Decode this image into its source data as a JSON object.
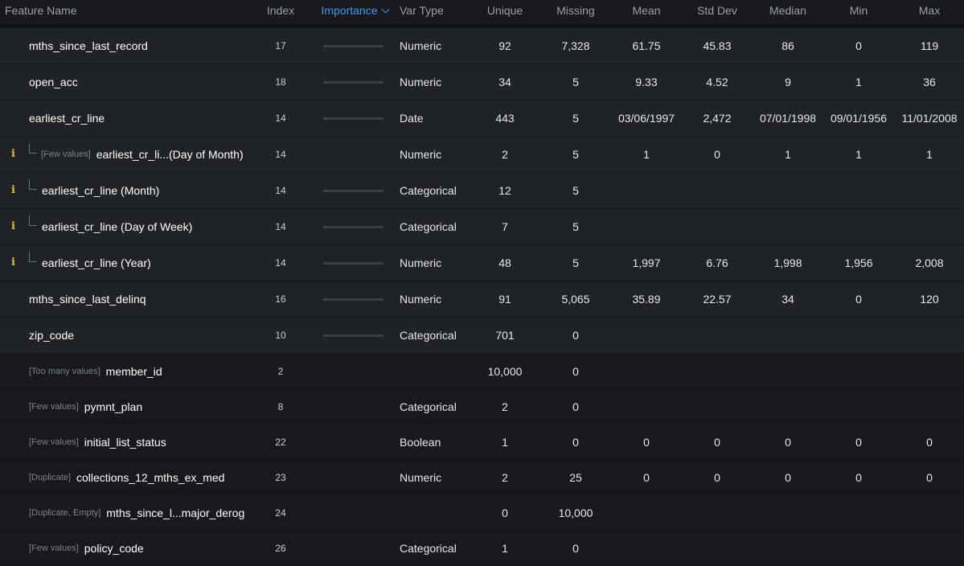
{
  "columns": {
    "feature_name": "Feature Name",
    "index": "Index",
    "importance": "Importance",
    "var_type": "Var Type",
    "unique": "Unique",
    "missing": "Missing",
    "mean": "Mean",
    "std_dev": "Std Dev",
    "median": "Median",
    "min": "Min",
    "max": "Max"
  },
  "sort": {
    "column": "Importance",
    "direction": "descending",
    "icon": "chevron-down-icon"
  },
  "colors": {
    "accent": "#3d9bf0",
    "info": "#e8c21c",
    "bar_track": "#3a3f45"
  },
  "rows": [
    {
      "name": "mths_since_last_record",
      "tag": "",
      "index": "17",
      "importance": 0,
      "var_type": "Numeric",
      "unique": "92",
      "missing": "7,328",
      "mean": "61.75",
      "std_dev": "45.83",
      "median": "86",
      "min": "0",
      "max": "119",
      "info": false,
      "child": false,
      "dim": false
    },
    {
      "name": "open_acc",
      "tag": "",
      "index": "18",
      "importance": 0,
      "var_type": "Numeric",
      "unique": "34",
      "missing": "5",
      "mean": "9.33",
      "std_dev": "4.52",
      "median": "9",
      "min": "1",
      "max": "36",
      "info": false,
      "child": false,
      "dim": false
    },
    {
      "name": "earliest_cr_line",
      "tag": "",
      "index": "14",
      "importance": 0,
      "var_type": "Date",
      "unique": "443",
      "missing": "5",
      "mean": "03/06/1997",
      "std_dev": "2,472",
      "median": "07/01/1998",
      "min": "09/01/1956",
      "max": "11/01/2008",
      "info": false,
      "child": false,
      "dim": false
    },
    {
      "name": "earliest_cr_li...(Day of Month)",
      "tag": "[Few values]",
      "index": "14",
      "importance": null,
      "var_type": "Numeric",
      "unique": "2",
      "missing": "5",
      "mean": "1",
      "std_dev": "0",
      "median": "1",
      "min": "1",
      "max": "1",
      "info": true,
      "child": true,
      "dim": false
    },
    {
      "name": "earliest_cr_line (Month)",
      "tag": "",
      "index": "14",
      "importance": 0,
      "var_type": "Categorical",
      "unique": "12",
      "missing": "5",
      "mean": "",
      "std_dev": "",
      "median": "",
      "min": "",
      "max": "",
      "info": true,
      "child": true,
      "dim": false
    },
    {
      "name": "earliest_cr_line (Day of Week)",
      "tag": "",
      "index": "14",
      "importance": 0,
      "var_type": "Categorical",
      "unique": "7",
      "missing": "5",
      "mean": "",
      "std_dev": "",
      "median": "",
      "min": "",
      "max": "",
      "info": true,
      "child": true,
      "dim": false
    },
    {
      "name": "earliest_cr_line (Year)",
      "tag": "",
      "index": "14",
      "importance": 0,
      "var_type": "Numeric",
      "unique": "48",
      "missing": "5",
      "mean": "1,997",
      "std_dev": "6.76",
      "median": "1,998",
      "min": "1,956",
      "max": "2,008",
      "info": true,
      "child": true,
      "dim": false
    },
    {
      "name": "mths_since_last_delinq",
      "tag": "",
      "index": "16",
      "importance": 0,
      "var_type": "Numeric",
      "unique": "91",
      "missing": "5,065",
      "mean": "35.89",
      "std_dev": "22.57",
      "median": "34",
      "min": "0",
      "max": "120",
      "info": false,
      "child": false,
      "dim": false
    },
    {
      "name": "zip_code",
      "tag": "",
      "index": "10",
      "importance": 0,
      "var_type": "Categorical",
      "unique": "701",
      "missing": "0",
      "mean": "",
      "std_dev": "",
      "median": "",
      "min": "",
      "max": "",
      "info": false,
      "child": false,
      "dim": false
    },
    {
      "name": "member_id",
      "tag": "[Too many values]",
      "index": "2",
      "importance": null,
      "var_type": "",
      "unique": "10,000",
      "missing": "0",
      "mean": "",
      "std_dev": "",
      "median": "",
      "min": "",
      "max": "",
      "info": false,
      "child": false,
      "dim": true
    },
    {
      "name": "pymnt_plan",
      "tag": "[Few values]",
      "index": "8",
      "importance": null,
      "var_type": "Categorical",
      "unique": "2",
      "missing": "0",
      "mean": "",
      "std_dev": "",
      "median": "",
      "min": "",
      "max": "",
      "info": false,
      "child": false,
      "dim": true
    },
    {
      "name": "initial_list_status",
      "tag": "[Few values]",
      "index": "22",
      "importance": null,
      "var_type": "Boolean",
      "unique": "1",
      "missing": "0",
      "mean": "0",
      "std_dev": "0",
      "median": "0",
      "min": "0",
      "max": "0",
      "info": false,
      "child": false,
      "dim": true
    },
    {
      "name": "collections_12_mths_ex_med",
      "tag": "[Duplicate]",
      "index": "23",
      "importance": null,
      "var_type": "Numeric",
      "unique": "2",
      "missing": "25",
      "mean": "0",
      "std_dev": "0",
      "median": "0",
      "min": "0",
      "max": "0",
      "info": false,
      "child": false,
      "dim": true
    },
    {
      "name": "mths_since_l...major_derog",
      "tag": "[Duplicate, Empty]",
      "index": "24",
      "importance": null,
      "var_type": "",
      "unique": "0",
      "missing": "10,000",
      "mean": "",
      "std_dev": "",
      "median": "",
      "min": "",
      "max": "",
      "info": false,
      "child": false,
      "dim": true
    },
    {
      "name": "policy_code",
      "tag": "[Few values]",
      "index": "26",
      "importance": null,
      "var_type": "Categorical",
      "unique": "1",
      "missing": "0",
      "mean": "",
      "std_dev": "",
      "median": "",
      "min": "",
      "max": "",
      "info": false,
      "child": false,
      "dim": true
    }
  ]
}
